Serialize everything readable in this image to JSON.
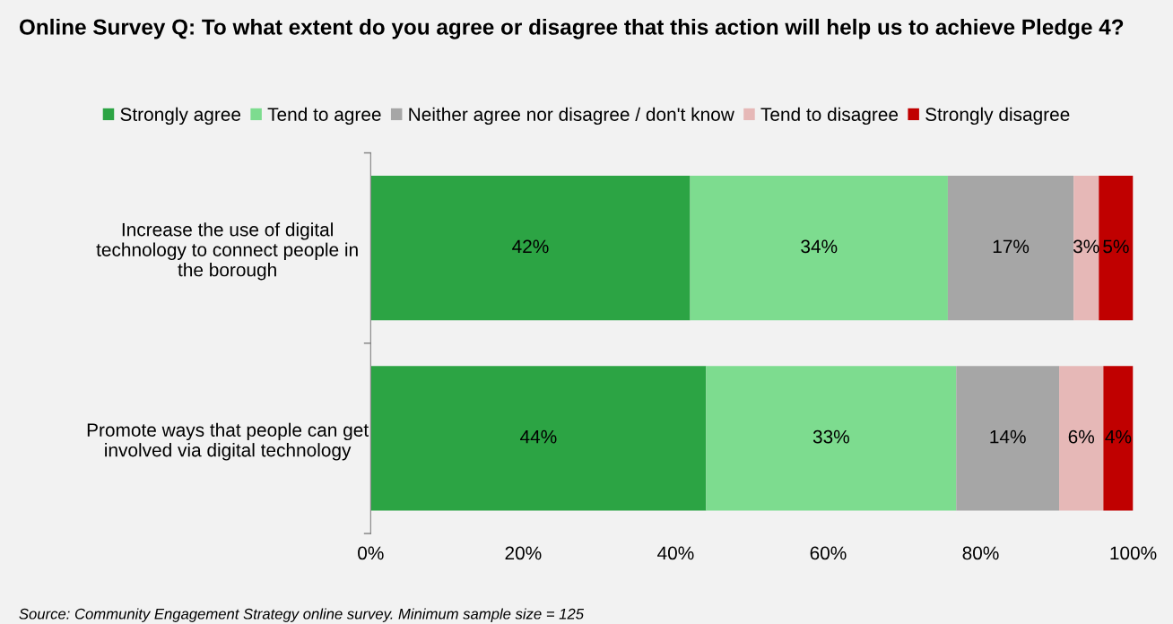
{
  "chart_data": {
    "type": "bar",
    "orientation": "horizontal",
    "stacked": true,
    "title": "Online Survey Q: To what extent do you agree or disagree that this action will help us to achieve Pledge 4?",
    "categories": [
      "Increase the use of digital technology to connect people in the borough",
      "Promote ways that people can get involved via digital technology"
    ],
    "series": [
      {
        "name": "Strongly agree",
        "color": "#2ca444",
        "values": [
          41.9,
          44.0
        ],
        "value_labels": [
          "42%",
          "44%"
        ]
      },
      {
        "name": "Tend to agree",
        "color": "#7ddc8f",
        "values": [
          33.8,
          32.8
        ],
        "value_labels": [
          "34%",
          "33%"
        ]
      },
      {
        "name": "Neither agree nor disagree / don't know",
        "color": "#a6a6a6",
        "values": [
          16.5,
          13.5
        ],
        "value_labels": [
          "17%",
          "14%"
        ]
      },
      {
        "name": "Tend to disagree",
        "color": "#e6b8b7",
        "values": [
          3.3,
          5.8
        ],
        "value_labels": [
          "3%",
          "6%"
        ]
      },
      {
        "name": "Strongly disagree",
        "color": "#c00000",
        "values": [
          4.5,
          3.9
        ],
        "value_labels": [
          "5%",
          "4%"
        ]
      }
    ],
    "xlim": [
      0,
      100
    ],
    "xticks": [
      {
        "value": 0,
        "label": "0%"
      },
      {
        "value": 20,
        "label": "20%"
      },
      {
        "value": 40,
        "label": "40%"
      },
      {
        "value": 60,
        "label": "60%"
      },
      {
        "value": 80,
        "label": "80%"
      },
      {
        "value": 100,
        "label": "100%"
      }
    ],
    "grid": false,
    "legend": "top",
    "annotations": [
      "Source: Community Engagement Strategy online survey. Minimum sample size = 125"
    ]
  }
}
